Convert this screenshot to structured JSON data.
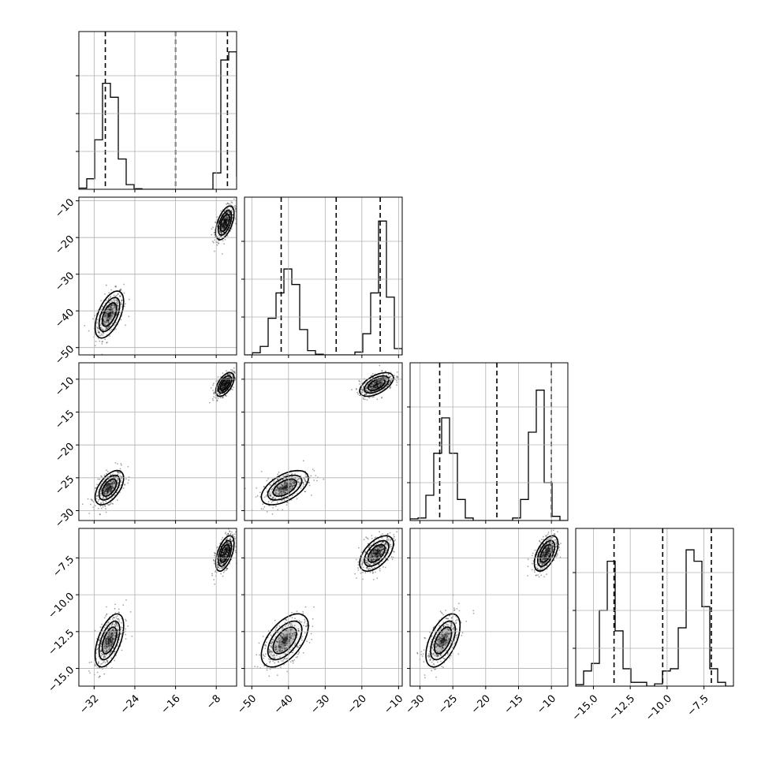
{
  "chart_data": {
    "type": "corner",
    "title": "",
    "grid": true,
    "parameters": [
      {
        "label": "",
        "range": [
          -35,
          -4
        ],
        "ticks": [
          -32,
          -24,
          -16,
          -8
        ],
        "tick_labels": [
          "−32",
          "−24",
          "−16",
          "−8"
        ],
        "quantiles": [
          -29.8,
          -16.0,
          -5.8
        ],
        "histogram": {
          "edges": [
            -35.0,
            -33.45,
            -31.9,
            -30.35,
            -28.8,
            -27.25,
            -25.7,
            -24.15,
            -22.6,
            -21.05,
            -19.5,
            -17.95,
            -16.4,
            -14.85,
            -13.3,
            -11.75,
            -10.2,
            -8.65,
            -7.1,
            -5.55,
            -4.0
          ],
          "counts": [
            2,
            18,
            85,
            182,
            158,
            52,
            8,
            1,
            0,
            0,
            0,
            0,
            0,
            0,
            0,
            0,
            0,
            28,
            222,
            236,
            22
          ],
          "ymax": 260
        }
      },
      {
        "label": "",
        "range": [
          -52,
          -9
        ],
        "ticks": [
          -50,
          -40,
          -30,
          -20,
          -10
        ],
        "tick_labels": [
          "−50",
          "−40",
          "−30",
          "−20",
          "−10"
        ],
        "quantiles": [
          -42.0,
          -27.0,
          -15.0
        ],
        "histogram": {
          "edges": [
            -52.0,
            -49.85,
            -47.7,
            -45.55,
            -43.4,
            -41.25,
            -39.1,
            -36.95,
            -34.8,
            -32.65,
            -30.5,
            -28.35,
            -26.2,
            -24.05,
            -21.9,
            -19.75,
            -17.6,
            -15.45,
            -13.3,
            -11.15,
            -9.0
          ],
          "counts": [
            0,
            3,
            12,
            52,
            88,
            122,
            100,
            36,
            6,
            1,
            0,
            0,
            0,
            0,
            4,
            30,
            88,
            190,
            82,
            9
          ],
          "ymax": 215
        }
      },
      {
        "label": "",
        "range": [
          -31.5,
          -7.5
        ],
        "ticks": [
          -30,
          -25,
          -20,
          -15,
          -10
        ],
        "tick_labels": [
          "−30",
          "−25",
          "−20",
          "−15",
          "−10"
        ],
        "quantiles": [
          -27.0,
          -18.3,
          -10.0
        ],
        "histogram": {
          "edges": [
            -31.5,
            -30.3,
            -29.1,
            -27.9,
            -26.7,
            -25.5,
            -24.3,
            -23.1,
            -21.9,
            -20.7,
            -19.5,
            -18.3,
            -17.1,
            -15.9,
            -14.7,
            -13.5,
            -12.3,
            -11.1,
            -9.9,
            -8.7,
            -7.5
          ],
          "counts": [
            2,
            3,
            30,
            80,
            122,
            80,
            25,
            3,
            0,
            0,
            0,
            0,
            0,
            3,
            25,
            105,
            155,
            45,
            5,
            0
          ],
          "ymax": 180
        }
      },
      {
        "label": "",
        "range": [
          -16.2,
          -5.5
        ],
        "ticks": [
          -15,
          -12.5,
          -10,
          -7.5
        ],
        "tick_labels": [
          "−15.0",
          "−12.5",
          "−10.0",
          "−7.5"
        ],
        "quantiles": [
          -13.6,
          -10.3,
          -7.0
        ],
        "histogram": {
          "edges": [
            -16.2,
            -15.665,
            -15.13,
            -14.595,
            -14.06,
            -13.525,
            -12.99,
            -12.455,
            -11.92,
            -11.385,
            -10.85,
            -10.315,
            -9.78,
            -9.245,
            -8.71,
            -8.175,
            -7.64,
            -7.105,
            -6.57,
            -6.035,
            -5.5
          ],
          "counts": [
            2,
            20,
            30,
            100,
            165,
            73,
            23,
            5,
            5,
            0,
            3,
            20,
            23,
            77,
            180,
            165,
            105,
            23,
            5,
            0
          ],
          "ymax": 200
        }
      }
    ],
    "modes": [
      {
        "weight": 0.45,
        "mean": [
          -29.0,
          -41.0,
          -26.5,
          -13.1
        ],
        "sd": [
          1.4,
          3.2,
          1.3,
          0.9
        ]
      },
      {
        "weight": 0.55,
        "mean": [
          -6.3,
          -16.0,
          -10.8,
          -7.2
        ],
        "sd": [
          0.9,
          2.3,
          0.9,
          0.6
        ]
      }
    ]
  }
}
